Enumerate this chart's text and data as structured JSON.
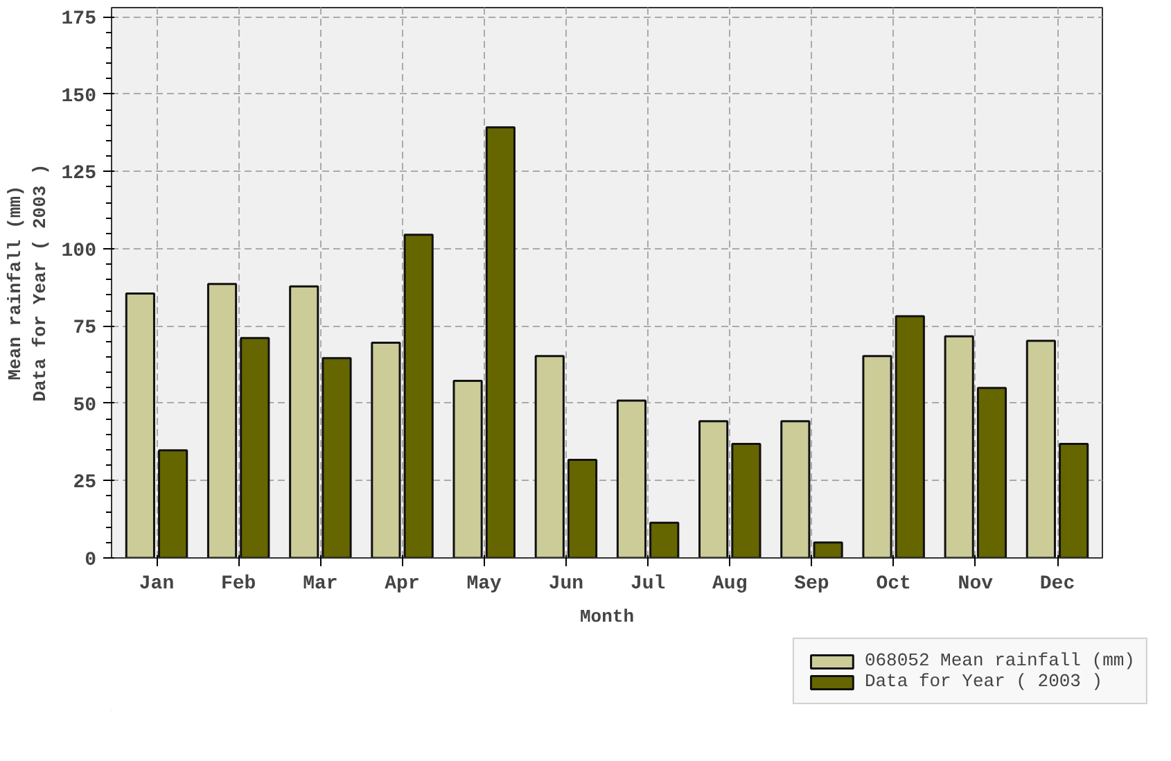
{
  "chart_data": {
    "type": "bar",
    "categories": [
      "Jan",
      "Feb",
      "Mar",
      "Apr",
      "May",
      "Jun",
      "Jul",
      "Aug",
      "Sep",
      "Oct",
      "Nov",
      "Dec"
    ],
    "xlabel": "Month",
    "ylabel": "Mean rainfall (mm)\nData for Year ( 2003 )",
    "series": [
      {
        "name": "068052 Mean rainfall (mm)",
        "color": "#cccc99",
        "values": [
          85.5,
          88.6,
          87.8,
          69.6,
          57.3,
          65.3,
          50.9,
          44.2,
          44.2,
          65.3,
          71.7,
          70.2
        ]
      },
      {
        "name": "Data for Year ( 2003 )",
        "color": "#666600",
        "values": [
          34.8,
          71.1,
          64.6,
          104.5,
          139.3,
          31.7,
          11.4,
          36.9,
          5.0,
          78.2,
          55.0,
          36.9
        ]
      }
    ],
    "ylim": [
      0,
      178
    ],
    "yticks": [
      0,
      25,
      50,
      75,
      100,
      125,
      150,
      175
    ],
    "grid": true,
    "legend": "bottom right"
  }
}
